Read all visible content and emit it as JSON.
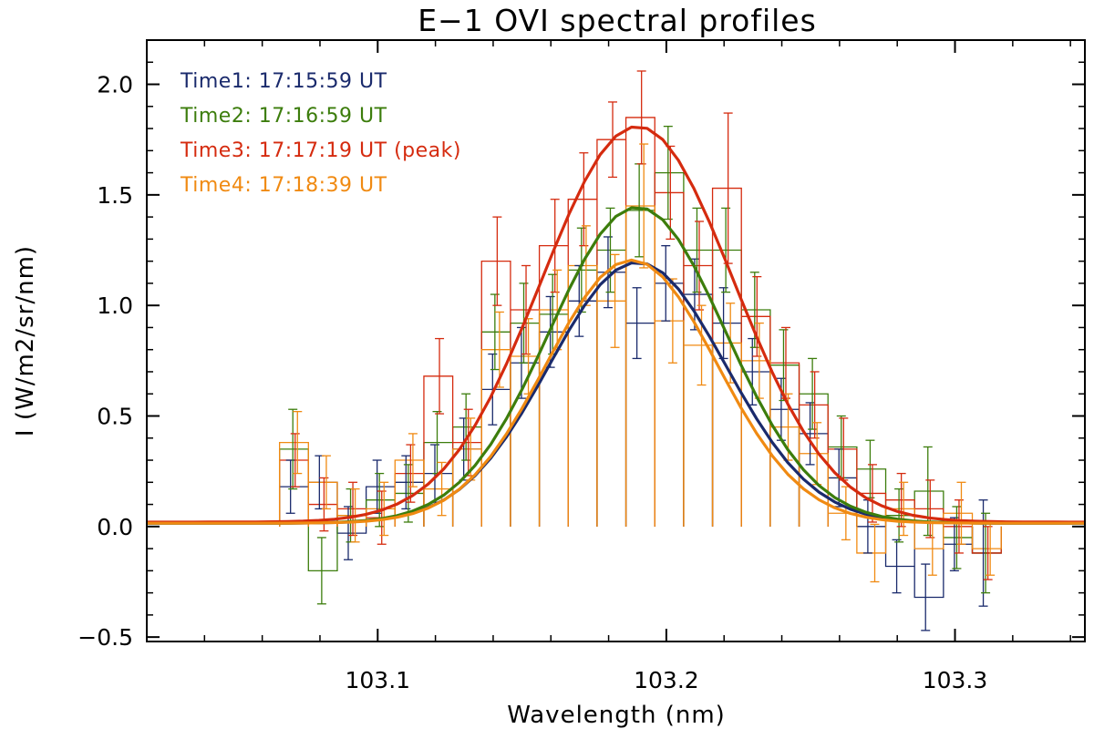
{
  "chart_data": {
    "type": "line",
    "title": "E−1 OVI spectral profiles",
    "xlabel": "Wavelength (nm)",
    "ylabel": "I (W/m2/sr/nm)",
    "xlim": [
      103.02,
      103.345
    ],
    "ylim": [
      -0.52,
      2.2
    ],
    "x_ticks": [
      {
        "value": 103.1,
        "label": "103.1"
      },
      {
        "value": 103.2,
        "label": "103.2"
      },
      {
        "value": 103.3,
        "label": "103.3"
      }
    ],
    "y_ticks": [
      {
        "value": -0.5,
        "label": "−0.5"
      },
      {
        "value": 0.0,
        "label": "0.0"
      },
      {
        "value": 0.5,
        "label": "0.5"
      },
      {
        "value": 1.0,
        "label": "1.0"
      },
      {
        "value": 1.5,
        "label": "1.5"
      },
      {
        "value": 2.0,
        "label": "2.0"
      }
    ],
    "legend_position": "top-left",
    "grid": false,
    "series": [
      {
        "name": "Time1: 17:15:59 UT",
        "color": "#1a2a6c",
        "fit": {
          "amplitude": 1.18,
          "center": 103.19,
          "sigma": 0.0305,
          "baseline": 0.015
        },
        "x": [
          103.071,
          103.081,
          103.091,
          103.101,
          103.111,
          103.121,
          103.131,
          103.141,
          103.151,
          103.161,
          103.171,
          103.181,
          103.191,
          103.201,
          103.211,
          103.221,
          103.231,
          103.241,
          103.251,
          103.261,
          103.271,
          103.281,
          103.291,
          103.301,
          103.311
        ],
        "y": [
          0.18,
          0.2,
          -0.03,
          0.18,
          0.2,
          0.24,
          0.35,
          0.62,
          0.74,
          0.88,
          1.02,
          1.15,
          0.92,
          1.1,
          1.05,
          0.92,
          0.7,
          0.53,
          0.42,
          0.22,
          0.0,
          -0.18,
          -0.32,
          -0.08,
          -0.12
        ],
        "err": [
          0.12,
          0.12,
          0.12,
          0.12,
          0.12,
          0.13,
          0.14,
          0.16,
          0.16,
          0.16,
          0.16,
          0.16,
          0.16,
          0.17,
          0.16,
          0.16,
          0.15,
          0.14,
          0.14,
          0.13,
          0.12,
          0.12,
          0.15,
          0.12,
          0.24
        ]
      },
      {
        "name": "Time2: 17:16:59 UT",
        "color": "#3c7d0c",
        "fit": {
          "amplitude": 1.43,
          "center": 103.19,
          "sigma": 0.0305,
          "baseline": 0.015
        },
        "x": [
          103.071,
          103.081,
          103.091,
          103.101,
          103.111,
          103.121,
          103.131,
          103.141,
          103.151,
          103.161,
          103.171,
          103.181,
          103.191,
          103.201,
          103.211,
          103.221,
          103.231,
          103.241,
          103.251,
          103.261,
          103.271,
          103.281,
          103.291,
          103.301,
          103.311
        ],
        "y": [
          0.35,
          -0.2,
          0.05,
          0.12,
          0.15,
          0.38,
          0.45,
          0.88,
          0.92,
          0.96,
          1.16,
          1.25,
          1.43,
          1.6,
          1.25,
          1.25,
          0.98,
          0.73,
          0.6,
          0.36,
          0.26,
          0.05,
          0.16,
          -0.05,
          -0.12
        ],
        "err": [
          0.18,
          0.15,
          0.12,
          0.12,
          0.13,
          0.14,
          0.15,
          0.17,
          0.18,
          0.18,
          0.19,
          0.19,
          0.21,
          0.21,
          0.19,
          0.19,
          0.17,
          0.16,
          0.16,
          0.14,
          0.13,
          0.12,
          0.2,
          0.14,
          0.18
        ]
      },
      {
        "name": "Time3: 17:17:19 UT (peak)",
        "color": "#d52b0f",
        "fit": {
          "amplitude": 1.79,
          "center": 103.19,
          "sigma": 0.0335,
          "baseline": 0.02
        },
        "x": [
          103.071,
          103.081,
          103.091,
          103.101,
          103.111,
          103.121,
          103.131,
          103.141,
          103.151,
          103.161,
          103.171,
          103.181,
          103.191,
          103.201,
          103.211,
          103.221,
          103.231,
          103.241,
          103.251,
          103.261,
          103.271,
          103.281,
          103.291,
          103.301,
          103.311
        ],
        "y": [
          0.3,
          0.1,
          0.08,
          0.04,
          0.24,
          0.68,
          0.38,
          1.2,
          0.98,
          1.27,
          1.48,
          1.75,
          1.85,
          1.51,
          1.18,
          1.53,
          0.95,
          0.74,
          0.55,
          0.35,
          0.15,
          0.12,
          0.08,
          0.0,
          -0.12
        ],
        "err": [
          0.12,
          0.12,
          0.12,
          0.12,
          0.13,
          0.17,
          0.15,
          0.2,
          0.2,
          0.21,
          0.21,
          0.17,
          0.21,
          0.21,
          0.2,
          0.34,
          0.18,
          0.16,
          0.15,
          0.14,
          0.13,
          0.12,
          0.13,
          0.12,
          0.12
        ]
      },
      {
        "name": "Time4: 17:18:39 UT",
        "color": "#f08a12",
        "fit": {
          "amplitude": 1.19,
          "center": 103.188,
          "sigma": 0.0295,
          "baseline": 0.015
        },
        "x": [
          103.071,
          103.081,
          103.091,
          103.101,
          103.111,
          103.121,
          103.131,
          103.141,
          103.151,
          103.161,
          103.171,
          103.181,
          103.191,
          103.201,
          103.211,
          103.221,
          103.231,
          103.241,
          103.251,
          103.261,
          103.271,
          103.281,
          103.291,
          103.301,
          103.311
        ],
        "y": [
          0.38,
          0.2,
          0.05,
          0.08,
          0.3,
          0.17,
          0.35,
          0.8,
          0.77,
          0.98,
          1.18,
          1.02,
          1.45,
          0.93,
          0.82,
          0.83,
          0.75,
          0.45,
          0.33,
          0.06,
          -0.12,
          0.08,
          -0.1,
          0.06,
          -0.1
        ],
        "err": [
          0.14,
          0.12,
          0.12,
          0.12,
          0.12,
          0.12,
          0.14,
          0.17,
          0.17,
          0.18,
          0.18,
          0.21,
          0.28,
          0.19,
          0.18,
          0.18,
          0.17,
          0.15,
          0.14,
          0.12,
          0.13,
          0.12,
          0.12,
          0.14,
          0.12
        ]
      }
    ]
  }
}
